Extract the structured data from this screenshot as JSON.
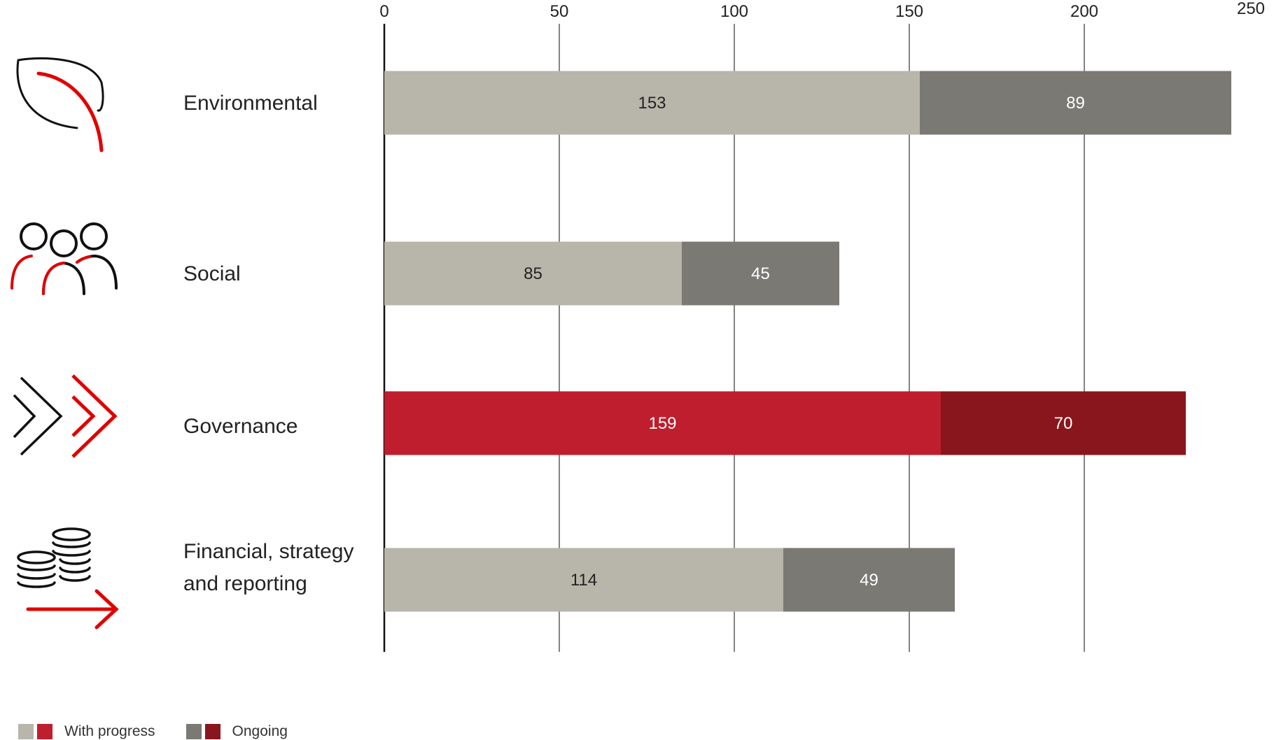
{
  "chart_data": {
    "type": "bar",
    "orientation": "horizontal",
    "stacked": true,
    "categories": [
      "Environmental",
      "Social",
      "Governance",
      "Financial, strategy and reporting"
    ],
    "category_display_lines": [
      [
        "Environmental"
      ],
      [
        "Social"
      ],
      [
        "Governance"
      ],
      [
        "Financial, strategy",
        "and reporting"
      ]
    ],
    "category_icons": [
      "leaf-icon",
      "people-icon",
      "double-chevron-icon",
      "coins-arrow-icon"
    ],
    "series": [
      {
        "name": "With progress",
        "values": [
          153,
          85,
          159,
          114
        ]
      },
      {
        "name": "Ongoing",
        "values": [
          89,
          45,
          70,
          49
        ]
      }
    ],
    "xlim": [
      0,
      250
    ],
    "xticks": [
      0,
      50,
      100,
      150,
      200,
      250
    ],
    "xaxis_position": "top",
    "grid": true,
    "legend_position": "bottom-left",
    "highlight_category": "Governance",
    "colors": {
      "with_progress": "#b8b6aa",
      "ongoing": "#7a7974",
      "with_progress_highlight": "#be1e2d",
      "ongoing_highlight": "#8a161d",
      "grid": "#333333",
      "icon_accent": "#e00000",
      "icon_line": "#111111"
    }
  }
}
